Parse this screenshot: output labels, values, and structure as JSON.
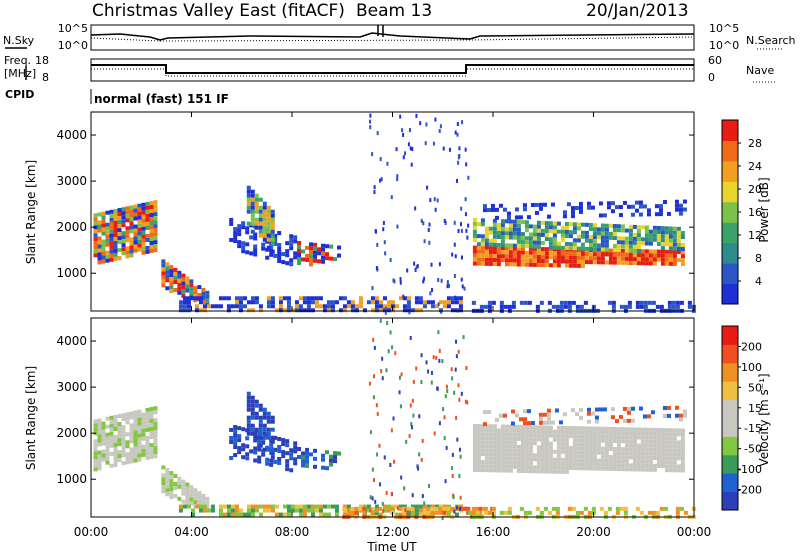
{
  "header": {
    "site": "Christmas Valley East (fitACF)",
    "beam": "Beam 13",
    "date": "20/Jan/2013"
  },
  "meta_panels": {
    "nsky_label": "N.Sky",
    "nsky_ticks": [
      "10^5",
      "10^0"
    ],
    "nsearch_label": "N.Search",
    "nsearch_ticks": [
      "10^5",
      "10^0"
    ],
    "freq_label_1": "Freq.",
    "freq_label_2": "[MHz]",
    "freq_ticks": [
      "18",
      "8"
    ],
    "nave_label": "Nave",
    "nave_ticks": [
      "60",
      "0"
    ],
    "cpid_label": "CPID",
    "cpid_text": "normal (fast) 151 IF"
  },
  "x_axis": {
    "label": "Time UT",
    "ticks": [
      "00:00",
      "04:00",
      "08:00",
      "12:00",
      "16:00",
      "20:00",
      "00:00"
    ]
  },
  "colors": {
    "power": [
      "#1e2fd6",
      "#2a56c8",
      "#2f8a8c",
      "#3aa36a",
      "#7cc24a",
      "#e8d42c",
      "#f0a020",
      "#f06a18",
      "#e81c12"
    ],
    "velocity": [
      "#2a3fb8",
      "#2060d0",
      "#3a9a5a",
      "#80c840",
      "#c8c8c0",
      "#c8c8c0",
      "#f0c040",
      "#f09020",
      "#f05020",
      "#e81c12"
    ]
  },
  "chart_data": [
    {
      "type": "heatmap",
      "title": "Power",
      "ylabel": "Slant Range [km]",
      "xlabel": "Time UT",
      "x_range": [
        "00:00",
        "24:00"
      ],
      "ylim": [
        180,
        4500
      ],
      "y_ticks": [
        1000,
        2000,
        3000,
        4000
      ],
      "colorbar": {
        "label": "Power [dB]",
        "ticks": [
          "4",
          "8",
          "12",
          "16",
          "20",
          "24",
          "28"
        ],
        "range": [
          0,
          30
        ]
      }
    },
    {
      "type": "heatmap",
      "title": "Velocity",
      "ylabel": "Slant Range [km]",
      "xlabel": "Time UT",
      "x_range": [
        "00:00",
        "24:00"
      ],
      "ylim": [
        180,
        4500
      ],
      "y_ticks": [
        1000,
        2000,
        3000,
        4000
      ],
      "colorbar": {
        "label": "Velocity [m s⁻¹]",
        "ticks": [
          "200",
          "100",
          "50",
          "15",
          "-15",
          "-50",
          "-100",
          "-200"
        ],
        "range": [
          -250,
          250
        ]
      }
    }
  ]
}
